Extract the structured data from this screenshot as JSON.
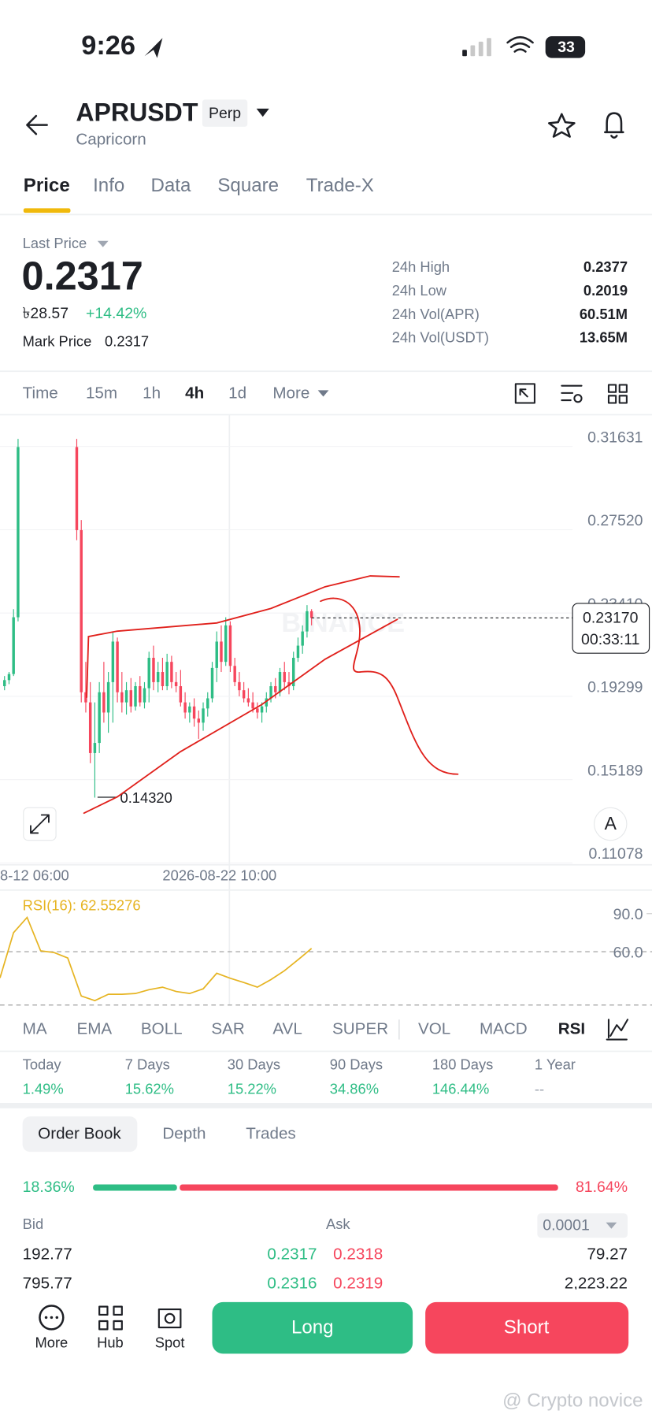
{
  "status_bar": {
    "time": "9:26",
    "battery": "33"
  },
  "header": {
    "symbol": "APRUSDT",
    "badge": "Perp",
    "subtitle": "Capricorn"
  },
  "tabs": [
    "Price",
    "Info",
    "Data",
    "Square",
    "Trade-X"
  ],
  "summary": {
    "last_price_label": "Last Price",
    "last_price": "0.2317",
    "local_price": "৳28.57",
    "change": "+14.42%",
    "mark_price_label": "Mark Price",
    "mark_price": "0.2317",
    "stats": [
      {
        "label": "24h High",
        "value": "0.2377"
      },
      {
        "label": "24h Low",
        "value": "0.2019"
      },
      {
        "label": "24h Vol(APR)",
        "value": "60.51M"
      },
      {
        "label": "24h Vol(USDT)",
        "value": "13.65M"
      }
    ]
  },
  "intervals": [
    "Time",
    "15m",
    "1h",
    "4h",
    "1d",
    "More"
  ],
  "chart_data": [
    {
      "type": "candlestick",
      "ylim": [
        0.11078,
        0.32659
      ],
      "yticks": [
        0.31631,
        {
          "value": 0.2752,
          "label": "0.27520"
        },
        {
          "value": 0.2341,
          "label": "0.23410"
        },
        0.19299,
        0.15189,
        0.11078
      ],
      "x_labels": [
        "8-12 06:00",
        "2026-08-22 10:00"
      ],
      "up_color": "#2ebd85",
      "down_color": "#f6465d",
      "candles": [
        [
          0.198,
          0.203,
          0.196,
          0.201
        ],
        [
          0.201,
          0.205,
          0.199,
          0.204
        ],
        [
          0.204,
          0.236,
          0.203,
          0.232
        ],
        [
          0.232,
          0.32,
          0.23,
          0.316
        ],
        null,
        null,
        null,
        null,
        null,
        null,
        null,
        null,
        null,
        null,
        null,
        null,
        [
          0.316,
          0.32,
          0.27,
          0.275
        ],
        [
          0.275,
          0.28,
          0.19,
          0.195
        ],
        [
          0.195,
          0.21,
          0.185,
          0.19
        ],
        [
          0.19,
          0.2,
          0.16,
          0.165
        ],
        [
          0.165,
          0.19,
          0.143,
          0.17
        ],
        [
          0.17,
          0.2,
          0.165,
          0.195
        ],
        [
          0.195,
          0.21,
          0.18,
          0.185
        ],
        [
          0.185,
          0.205,
          0.175,
          0.2
        ],
        [
          0.2,
          0.225,
          0.18,
          0.22
        ],
        [
          0.22,
          0.222,
          0.19,
          0.195
        ],
        [
          0.195,
          0.205,
          0.185,
          0.19
        ],
        [
          0.19,
          0.2,
          0.184,
          0.196
        ],
        [
          0.196,
          0.202,
          0.185,
          0.188
        ],
        [
          0.188,
          0.2,
          0.186,
          0.198
        ],
        [
          0.198,
          0.203,
          0.188,
          0.19
        ],
        [
          0.19,
          0.2,
          0.187,
          0.197
        ],
        [
          0.197,
          0.215,
          0.19,
          0.212
        ],
        [
          0.212,
          0.218,
          0.196,
          0.2
        ],
        [
          0.2,
          0.21,
          0.195,
          0.205
        ],
        [
          0.205,
          0.212,
          0.196,
          0.198
        ],
        [
          0.198,
          0.214,
          0.196,
          0.21
        ],
        [
          0.21,
          0.213,
          0.197,
          0.2
        ],
        [
          0.2,
          0.205,
          0.195,
          0.198
        ],
        [
          0.198,
          0.206,
          0.188,
          0.19
        ],
        [
          0.19,
          0.195,
          0.182,
          0.185
        ],
        [
          0.185,
          0.19,
          0.18,
          0.188
        ],
        [
          0.188,
          0.192,
          0.178,
          0.182
        ],
        [
          0.182,
          0.186,
          0.172,
          0.18
        ],
        [
          0.18,
          0.19,
          0.176,
          0.187
        ],
        [
          0.187,
          0.195,
          0.183,
          0.192
        ],
        [
          0.192,
          0.21,
          0.19,
          0.207
        ],
        [
          0.207,
          0.225,
          0.2,
          0.22
        ],
        [
          0.22,
          0.228,
          0.205,
          0.21
        ],
        [
          0.21,
          0.232,
          0.208,
          0.228
        ],
        [
          0.228,
          0.23,
          0.205,
          0.208
        ],
        [
          0.208,
          0.212,
          0.198,
          0.2
        ],
        [
          0.2,
          0.205,
          0.193,
          0.196
        ],
        [
          0.196,
          0.2,
          0.19,
          0.192
        ],
        [
          0.192,
          0.197,
          0.188,
          0.19
        ],
        [
          0.19,
          0.195,
          0.185,
          0.187
        ],
        [
          0.187,
          0.19,
          0.182,
          0.185
        ],
        [
          0.185,
          0.19,
          0.18,
          0.188
        ],
        [
          0.188,
          0.195,
          0.185,
          0.192
        ],
        [
          0.192,
          0.2,
          0.19,
          0.198
        ],
        [
          0.198,
          0.202,
          0.192,
          0.195
        ],
        [
          0.195,
          0.207,
          0.193,
          0.205
        ],
        [
          0.205,
          0.21,
          0.196,
          0.2
        ],
        [
          0.2,
          0.205,
          0.194,
          0.198
        ],
        [
          0.198,
          0.215,
          0.196,
          0.212
        ],
        [
          0.212,
          0.222,
          0.21,
          0.218
        ],
        [
          0.218,
          0.228,
          0.214,
          0.225
        ],
        [
          0.225,
          0.238,
          0.222,
          0.235
        ],
        [
          0.235,
          0.236,
          0.228,
          0.2317
        ]
      ],
      "last_price": {
        "value": 0.2317,
        "label": "0.23170"
      },
      "countdown": "00:33:11",
      "low": {
        "value": 0.1432,
        "label": "0.14320"
      },
      "watermark": "BINANCE"
    },
    {
      "type": "line",
      "title": "RSI(16): 62.55276",
      "color": "#e6b422",
      "ylim": [
        17.86,
        107.14
      ],
      "yticks": [
        {
          "value": 90,
          "label": "90.0"
        },
        {
          "value": 60,
          "label": "60.0"
        }
      ],
      "values": [
        39.3,
        75,
        87,
        60.7,
        59.3,
        55,
        25,
        21.4,
        26.4,
        26.4,
        27,
        30,
        32,
        28.6,
        27,
        30.7,
        43,
        39,
        35.7,
        32,
        38,
        45,
        53.6,
        62.55
      ]
    }
  ],
  "indicators": [
    "MA",
    "EMA",
    "BOLL",
    "SAR",
    "AVL",
    "SUPER",
    "VOL",
    "MACD",
    "RSI"
  ],
  "performance": [
    {
      "period": "Today",
      "change": "1.49%"
    },
    {
      "period": "7 Days",
      "change": "15.62%"
    },
    {
      "period": "30 Days",
      "change": "15.22%"
    },
    {
      "period": "90 Days",
      "change": "34.86%"
    },
    {
      "period": "180 Days",
      "change": "146.44%"
    },
    {
      "period": "1 Year",
      "change": "--"
    }
  ],
  "order_book": {
    "tabs": [
      "Order Book",
      "Depth",
      "Trades"
    ],
    "bid_ratio": "18.36%",
    "ask_ratio": "81.64%",
    "bid_label": "Bid",
    "ask_label": "Ask",
    "precision": "0.0001",
    "rows": [
      [
        "192.77",
        "0.2317",
        "0.2318",
        "79.27"
      ],
      [
        "795.77",
        "0.2316",
        "0.2319",
        "2,223.22"
      ]
    ]
  },
  "bottom_bar": {
    "items": [
      "More",
      "Hub",
      "Spot"
    ],
    "long": "Long",
    "short": "Short"
  },
  "watermark": "@ Crypto novice"
}
